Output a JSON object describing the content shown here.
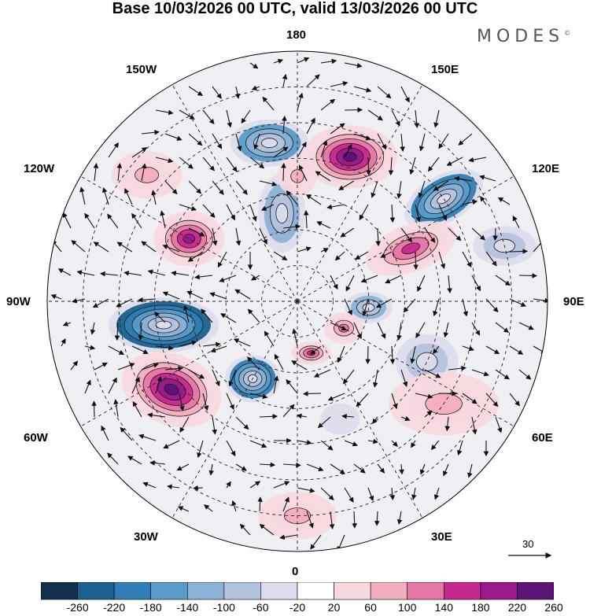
{
  "title": "Base 10/03/2026 00 UTC, valid 13/03/2026 00 UTC",
  "brand": "MODES",
  "brand_mark": "©",
  "longitude_labels": {
    "top": "180",
    "bottom": "0",
    "left": "90W",
    "right": "90E",
    "upper_left_1": "150W",
    "upper_left_2": "120W",
    "lower_left_1": "60W",
    "lower_left_2": "30W",
    "upper_right_1": "150E",
    "upper_right_2": "120E",
    "lower_right_1": "60E",
    "lower_right_2": "30E"
  },
  "reference_vector": "30",
  "colorbar": {
    "ticks": [
      "-260",
      "-220",
      "-180",
      "-140",
      "-100",
      "-60",
      "-20",
      "20",
      "60",
      "100",
      "140",
      "180",
      "220",
      "260"
    ],
    "colors": [
      "#13314f",
      "#1a5f8e",
      "#2f7db4",
      "#5a9bc8",
      "#8cb2d6",
      "#b6c3de",
      "#dcdcec",
      "#ffffff",
      "#f8d8df",
      "#f1aebe",
      "#e676a6",
      "#c6298e",
      "#991a88",
      "#5c1276"
    ]
  },
  "anomalies": [
    {
      "lon": -80,
      "lat": 52,
      "value": -260,
      "rx": 14,
      "ry": 7,
      "rot": 0
    },
    {
      "lon": -55,
      "lat": 47,
      "value": 240,
      "rx": 13,
      "ry": 9,
      "rot": 20
    },
    {
      "lon": -30,
      "lat": 65,
      "value": -220,
      "rx": 7,
      "ry": 6,
      "rot": 0
    },
    {
      "lon": -170,
      "lat": 45,
      "value": -180,
      "rx": 10,
      "ry": 6,
      "rot": 0
    },
    {
      "lon": -170,
      "lat": 65,
      "value": -120,
      "rx": 6,
      "ry": 10,
      "rot": 0
    },
    {
      "lon": 160,
      "lat": 47,
      "value": 240,
      "rx": 12,
      "ry": 8,
      "rot": 0
    },
    {
      "lon": 125,
      "lat": 40,
      "value": -220,
      "rx": 11,
      "ry": 6,
      "rot": -30
    },
    {
      "lon": 115,
      "lat": 55,
      "value": 160,
      "rx": 12,
      "ry": 6,
      "rot": -20
    },
    {
      "lon": -120,
      "lat": 55,
      "value": 200,
      "rx": 9,
      "ry": 7,
      "rot": 0
    },
    {
      "lon": -130,
      "lat": 35,
      "value": 100,
      "rx": 9,
      "ry": 6,
      "rot": 0
    },
    {
      "lon": 85,
      "lat": 70,
      "value": -140,
      "rx": 6,
      "ry": 4,
      "rot": 0
    },
    {
      "lon": 65,
      "lat": 50,
      "value": -100,
      "rx": 8,
      "ry": 7,
      "rot": 0
    },
    {
      "lon": 60,
      "lat": 75,
      "value": 140,
      "rx": 5,
      "ry": 4,
      "rot": 0
    },
    {
      "lon": 15,
      "lat": 75,
      "value": 160,
      "rx": 5,
      "ry": 3,
      "rot": 0
    },
    {
      "lon": 55,
      "lat": 40,
      "value": 80,
      "rx": 14,
      "ry": 8,
      "rot": 0
    },
    {
      "lon": 0,
      "lat": 30,
      "value": 90,
      "rx": 10,
      "ry": 6,
      "rot": 0
    },
    {
      "lon": 180,
      "lat": 55,
      "value": 100,
      "rx": 5,
      "ry": 5,
      "rot": 0
    },
    {
      "lon": 20,
      "lat": 55,
      "value": -60,
      "rx": 5,
      "ry": 4,
      "rot": 0
    },
    {
      "lon": 105,
      "lat": 30,
      "value": -80,
      "rx": 8,
      "ry": 5,
      "rot": 0
    }
  ]
}
